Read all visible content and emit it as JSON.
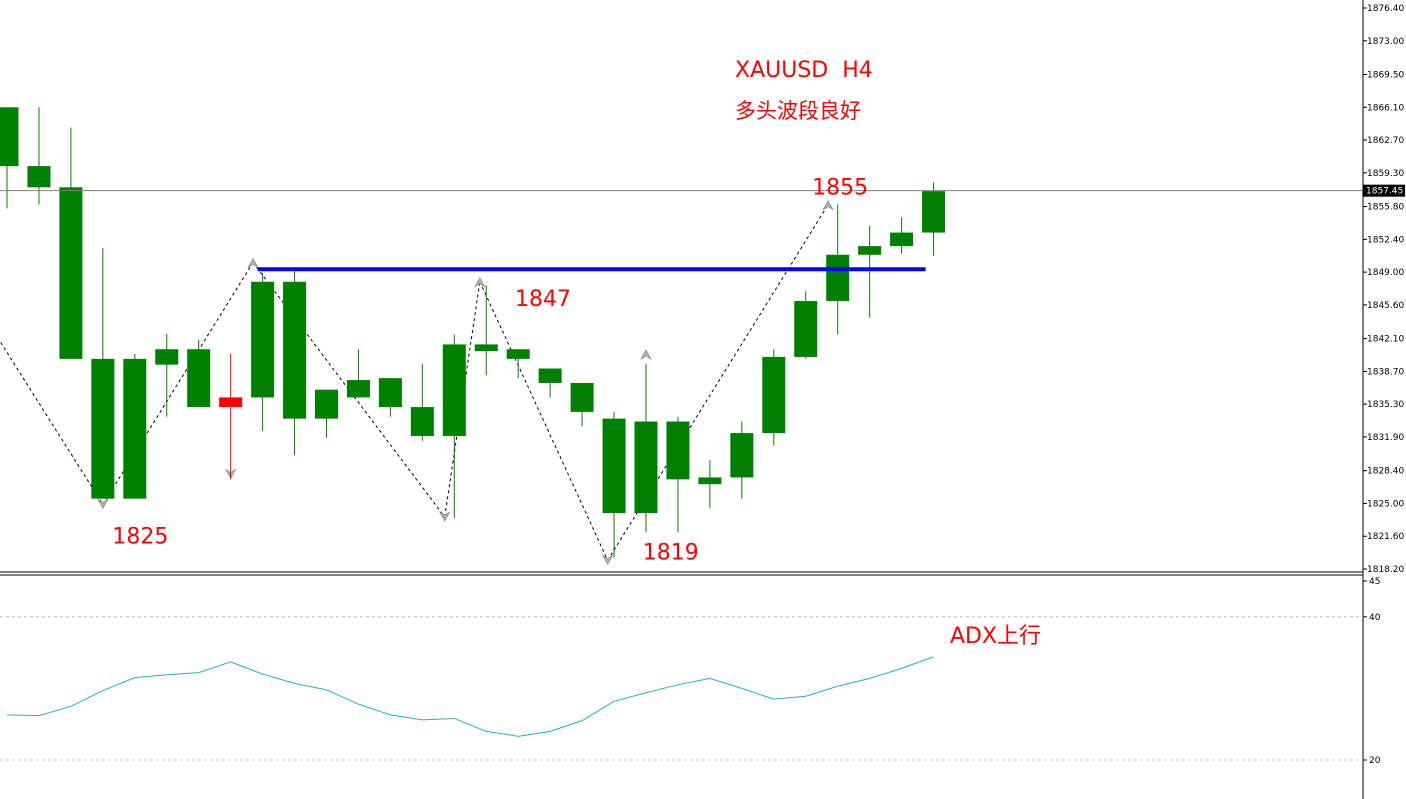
{
  "header": {
    "symbol_timeframe": "XAUUSD  H4",
    "note": "多头波段良好"
  },
  "colors": {
    "bull": "#008000",
    "bear": "#ff0000",
    "resistance": "#0000ff",
    "adx": "#20b2c0",
    "text_red": "#ff0000",
    "grid": "#c0c0c0"
  },
  "chart_data": [
    {
      "type": "candlestick",
      "symbol": "XAUUSD",
      "timeframe": "H4",
      "ylim": [
        1818.2,
        1876.4
      ],
      "y_ticks": [
        "1876.40",
        "1873.00",
        "1869.50",
        "1866.10",
        "1862.70",
        "1859.30",
        "1855.80",
        "1852.40",
        "1849.00",
        "1845.60",
        "1842.10",
        "1838.70",
        "1835.30",
        "1831.90",
        "1828.40",
        "1825.00",
        "1821.60",
        "1818.20"
      ],
      "current_price": "1857.45",
      "candles": [
        {
          "o": 1860.0,
          "h": 1866.1,
          "l": 1855.6,
          "c": 1866.1
        },
        {
          "o": 1857.8,
          "h": 1866.1,
          "l": 1856.0,
          "c": 1860.0
        },
        {
          "o": 1840.0,
          "h": 1864.0,
          "l": 1840.0,
          "c": 1857.8
        },
        {
          "o": 1825.5,
          "h": 1851.5,
          "l": 1825.5,
          "c": 1840.0
        },
        {
          "o": 1825.5,
          "h": 1840.5,
          "l": 1825.5,
          "c": 1840.0
        },
        {
          "o": 1839.4,
          "h": 1842.6,
          "l": 1834.0,
          "c": 1841.0
        },
        {
          "o": 1835.0,
          "h": 1842.0,
          "l": 1835.0,
          "c": 1841.0
        },
        {
          "o": 1836.0,
          "h": 1840.5,
          "l": 1827.5,
          "c": 1835.0
        },
        {
          "o": 1836.0,
          "h": 1848.9,
          "l": 1832.5,
          "c": 1848.0
        },
        {
          "o": 1833.8,
          "h": 1849.5,
          "l": 1830.0,
          "c": 1848.0
        },
        {
          "o": 1833.8,
          "h": 1836.8,
          "l": 1831.8,
          "c": 1836.8
        },
        {
          "o": 1836.0,
          "h": 1841.0,
          "l": 1836.0,
          "c": 1837.8
        },
        {
          "o": 1835.0,
          "h": 1838.0,
          "l": 1834.0,
          "c": 1838.0
        },
        {
          "o": 1832.0,
          "h": 1839.5,
          "l": 1831.5,
          "c": 1835.0
        },
        {
          "o": 1832.0,
          "h": 1842.5,
          "l": 1823.5,
          "c": 1841.5
        },
        {
          "o": 1840.8,
          "h": 1847.6,
          "l": 1838.3,
          "c": 1841.5
        },
        {
          "o": 1840.0,
          "h": 1841.0,
          "l": 1838.0,
          "c": 1841.0
        },
        {
          "o": 1837.5,
          "h": 1839.0,
          "l": 1836.0,
          "c": 1839.0
        },
        {
          "o": 1834.5,
          "h": 1837.5,
          "l": 1833.0,
          "c": 1837.5
        },
        {
          "o": 1824.0,
          "h": 1834.5,
          "l": 1819.4,
          "c": 1833.8
        },
        {
          "o": 1824.0,
          "h": 1839.5,
          "l": 1822.0,
          "c": 1833.5
        },
        {
          "o": 1827.5,
          "h": 1834.0,
          "l": 1822.0,
          "c": 1833.5
        },
        {
          "o": 1827.0,
          "h": 1829.5,
          "l": 1824.5,
          "c": 1827.7
        },
        {
          "o": 1827.7,
          "h": 1833.5,
          "l": 1825.5,
          "c": 1832.3
        },
        {
          "o": 1832.3,
          "h": 1841.0,
          "l": 1831.0,
          "c": 1840.2
        },
        {
          "o": 1840.2,
          "h": 1847.0,
          "l": 1840.0,
          "c": 1846.0
        },
        {
          "o": 1846.0,
          "h": 1856.0,
          "l": 1842.5,
          "c": 1850.8
        },
        {
          "o": 1850.8,
          "h": 1853.8,
          "l": 1844.3,
          "c": 1851.7
        },
        {
          "o": 1851.7,
          "h": 1854.7,
          "l": 1850.9,
          "c": 1853.1
        },
        {
          "o": 1853.1,
          "h": 1858.3,
          "l": 1850.7,
          "c": 1857.4
        }
      ],
      "resistance_level": 1849.3,
      "zigzag_points": [
        {
          "i": -1.3,
          "v": 1847.5
        },
        {
          "i": 3,
          "v": 1824.9
        },
        {
          "i": 7.7,
          "v": 1850.0
        },
        {
          "i": 13.7,
          "v": 1823.6
        },
        {
          "i": 14.8,
          "v": 1848.0
        },
        {
          "i": 18.8,
          "v": 1819.1
        },
        {
          "i": 25.7,
          "v": 1856.0
        }
      ],
      "annotations": [
        {
          "label": "1825",
          "i": 3.3,
          "v": 1821.7
        },
        {
          "label": "1847",
          "i": 15.9,
          "v": 1846.3
        },
        {
          "label": "1819",
          "i": 19.9,
          "v": 1820.0
        },
        {
          "label": "1855",
          "i": 25.2,
          "v": 1857.9
        }
      ]
    },
    {
      "type": "line",
      "indicator": "ADX",
      "ylim": [
        20,
        45
      ],
      "y_ticks": [
        "45",
        "40",
        "20"
      ],
      "levels": [
        40,
        20
      ],
      "note": "ADX上行",
      "values": [
        26.3,
        26.2,
        27.5,
        29.7,
        31.5,
        31.9,
        32.2,
        33.7,
        32.0,
        30.7,
        29.8,
        27.8,
        26.3,
        25.6,
        25.8,
        24.0,
        23.3,
        24.0,
        25.5,
        28.2,
        29.4,
        30.5,
        31.4,
        30.0,
        28.5,
        28.9,
        30.3,
        31.4,
        32.8,
        34.4
      ]
    }
  ]
}
